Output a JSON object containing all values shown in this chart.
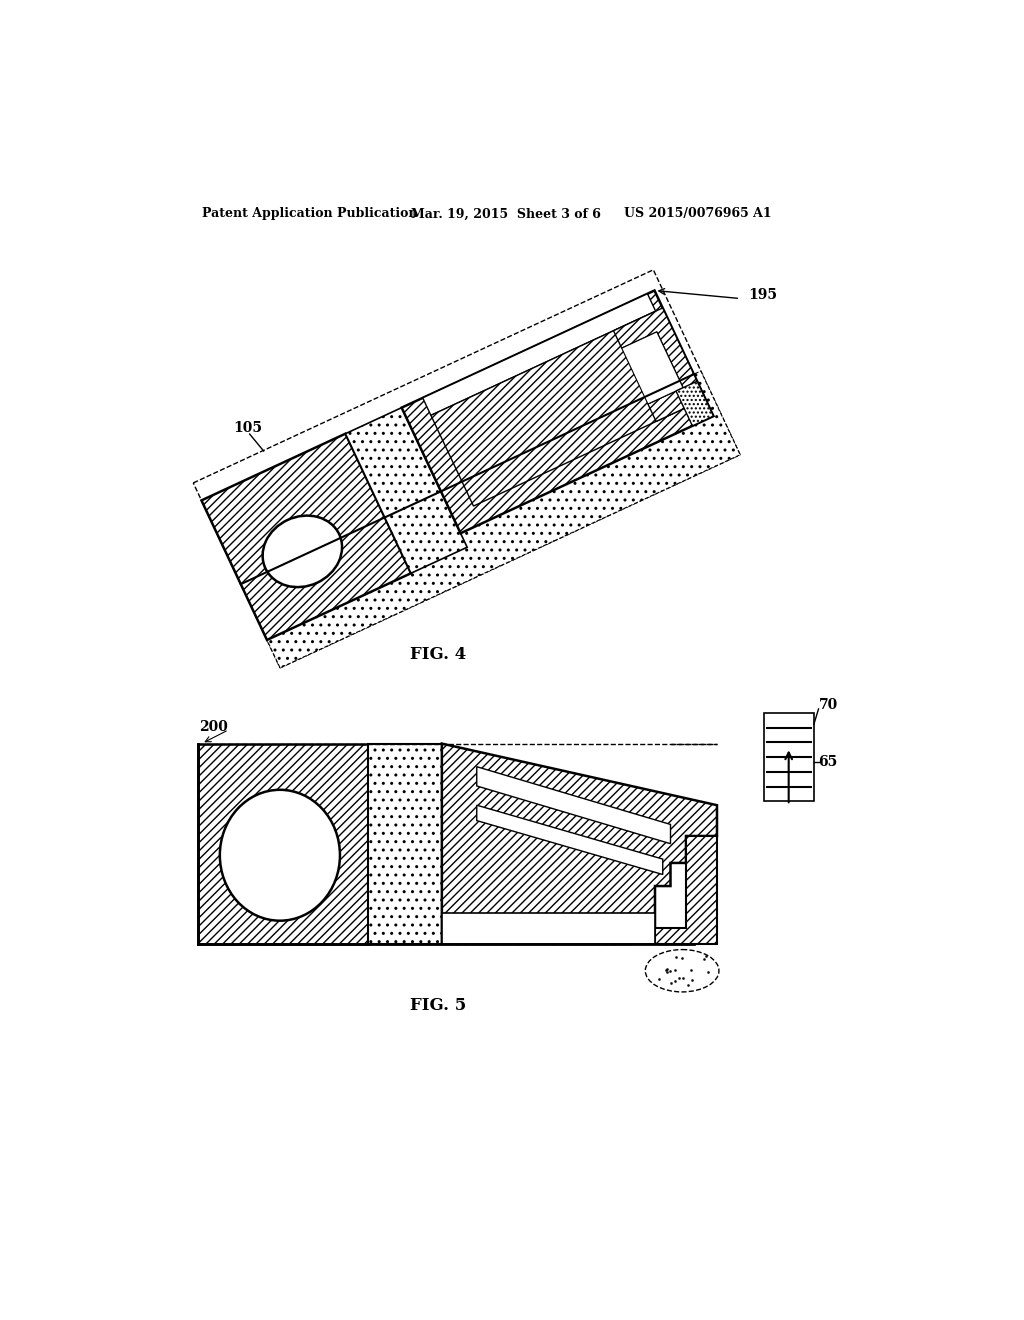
{
  "bg_color": "#ffffff",
  "header_text1": "Patent Application Publication",
  "header_text2": "Mar. 19, 2015  Sheet 3 of 6",
  "header_text3": "US 2015/0076965 A1",
  "fig4_label": "FIG. 4",
  "fig5_label": "FIG. 5",
  "label_105": "105",
  "label_195": "195",
  "label_200": "200",
  "label_65": "65",
  "label_70": "70",
  "line_color": "#000000"
}
